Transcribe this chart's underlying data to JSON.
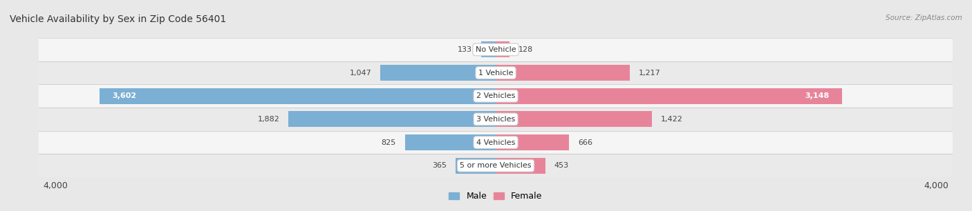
{
  "title": "Vehicle Availability by Sex in Zip Code 56401",
  "source": "Source: ZipAtlas.com",
  "categories": [
    "No Vehicle",
    "1 Vehicle",
    "2 Vehicles",
    "3 Vehicles",
    "4 Vehicles",
    "5 or more Vehicles"
  ],
  "male_values": [
    133,
    1047,
    3602,
    1882,
    825,
    365
  ],
  "female_values": [
    128,
    1217,
    3148,
    1422,
    666,
    453
  ],
  "male_color": "#7bafd4",
  "female_color": "#e8849a",
  "xlim": [
    -4000,
    4000
  ],
  "bar_height": 0.68,
  "background_color": "#e8e8e8",
  "row_bg_even": "#f5f5f5",
  "row_bg_odd": "#eaeaea",
  "title_fontsize": 10,
  "label_fontsize": 8,
  "value_fontsize": 8,
  "axis_fontsize": 9,
  "legend_fontsize": 9,
  "inside_label_threshold": 2500
}
